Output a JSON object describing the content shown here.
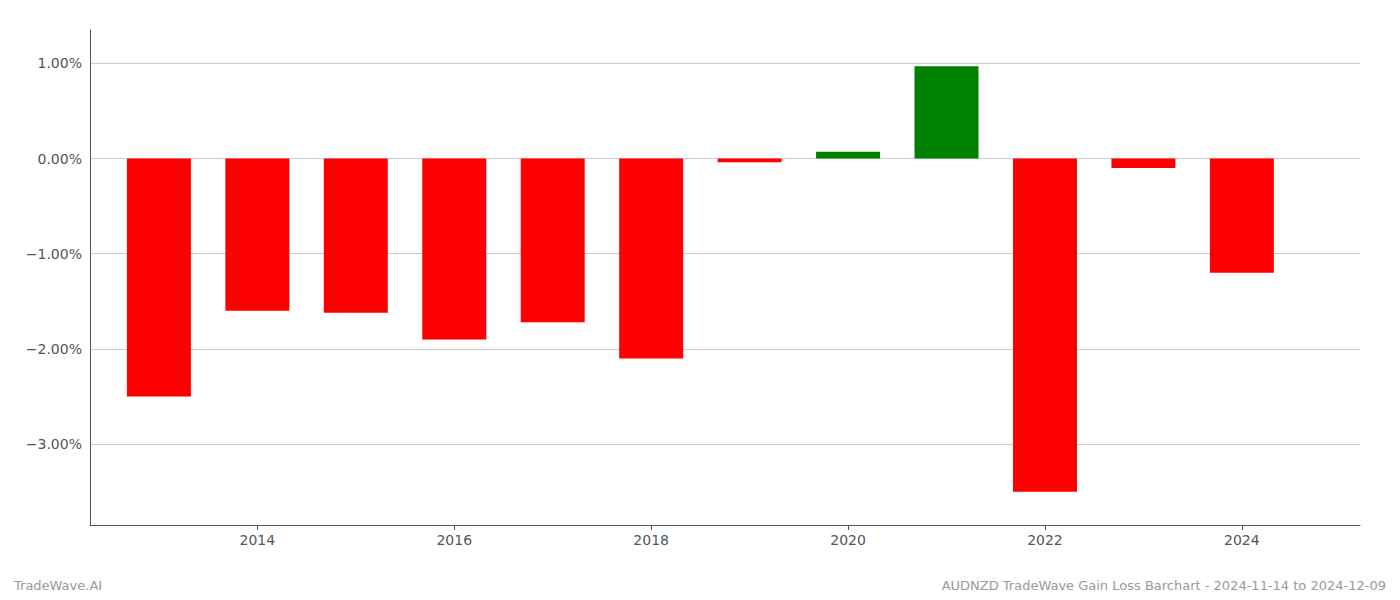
{
  "chart_data": {
    "type": "bar",
    "x": [
      2013,
      2014,
      2015,
      2016,
      2017,
      2018,
      2019,
      2020,
      2021,
      2022,
      2023,
      2024
    ],
    "values": [
      -2.5,
      -1.6,
      -1.62,
      -1.9,
      -1.72,
      -2.1,
      -0.04,
      0.07,
      0.97,
      -3.5,
      -0.1,
      -1.2
    ],
    "colors": [
      "#ff0000",
      "#ff0000",
      "#ff0000",
      "#ff0000",
      "#ff0000",
      "#ff0000",
      "#ff0000",
      "#008000",
      "#008000",
      "#ff0000",
      "#ff0000",
      "#ff0000"
    ],
    "xlim": [
      2012.3,
      2025.2
    ],
    "xticks": [
      2014,
      2016,
      2018,
      2020,
      2022,
      2024
    ],
    "ylim": [
      -3.85,
      1.35
    ],
    "yticks": [
      {
        "value": 1.0,
        "label": "1.00%"
      },
      {
        "value": 0.0,
        "label": "0.00%"
      },
      {
        "value": -1.0,
        "label": "−1.00%"
      },
      {
        "value": -2.0,
        "label": "−2.00%"
      },
      {
        "value": -3.0,
        "label": "−3.00%"
      }
    ],
    "grid": true,
    "annotations": [
      "TradeWave.AI",
      "AUDNZD TradeWave Gain Loss Barchart - 2024-11-14 to 2024-12-09"
    ]
  }
}
